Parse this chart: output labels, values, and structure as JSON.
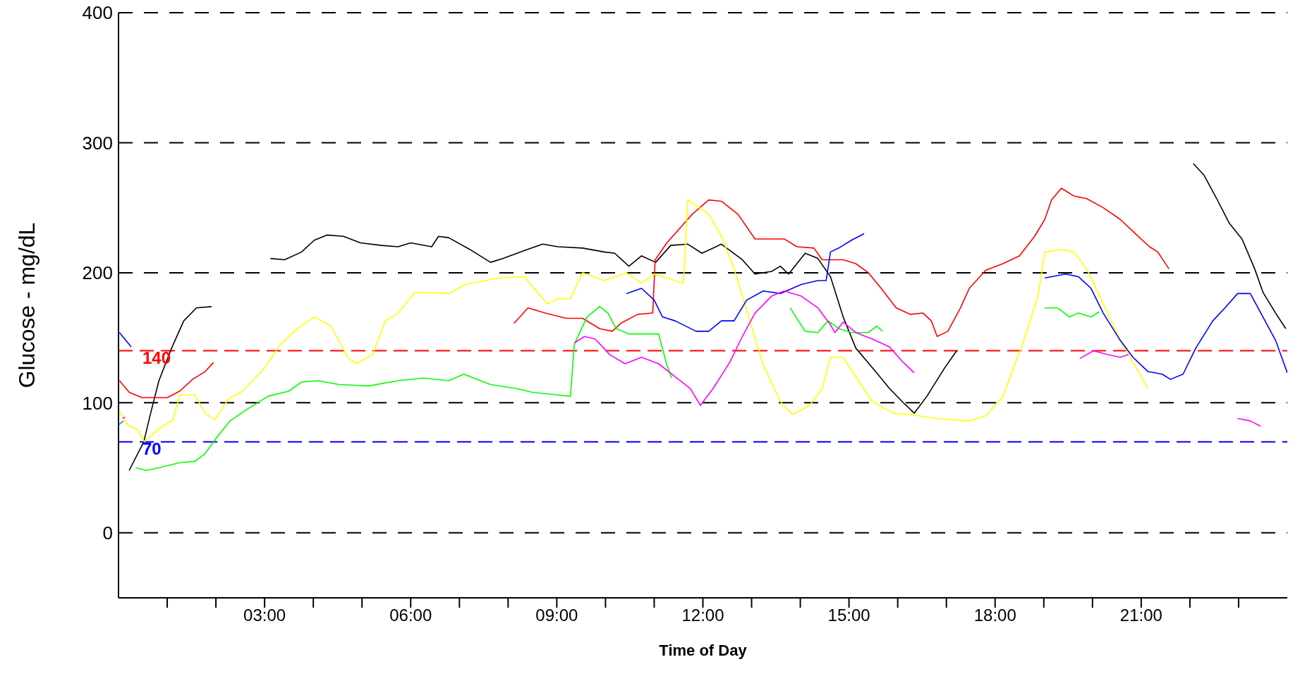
{
  "chart_data": {
    "type": "line",
    "xlabel": "Time of Day",
    "ylabel": "Glucose - mg/dL",
    "xlim": [
      0,
      24
    ],
    "ylim": [
      -50,
      400
    ],
    "xticks": [
      {
        "value": 1,
        "label": null
      },
      {
        "value": 2,
        "label": null
      },
      {
        "value": 3,
        "label": "03:00"
      },
      {
        "value": 4,
        "label": null
      },
      {
        "value": 5,
        "label": null
      },
      {
        "value": 6,
        "label": "06:00"
      },
      {
        "value": 7,
        "label": null
      },
      {
        "value": 8,
        "label": null
      },
      {
        "value": 9,
        "label": "09:00"
      },
      {
        "value": 10,
        "label": null
      },
      {
        "value": 11,
        "label": null
      },
      {
        "value": 12,
        "label": "12:00"
      },
      {
        "value": 13,
        "label": null
      },
      {
        "value": 14,
        "label": null
      },
      {
        "value": 15,
        "label": "15:00"
      },
      {
        "value": 16,
        "label": null
      },
      {
        "value": 17,
        "label": null
      },
      {
        "value": 18,
        "label": "18:00"
      },
      {
        "value": 19,
        "label": null
      },
      {
        "value": 20,
        "label": null
      },
      {
        "value": 21,
        "label": "21:00"
      },
      {
        "value": 22,
        "label": null
      },
      {
        "value": 23,
        "label": null
      }
    ],
    "yticks": [
      0,
      100,
      200,
      300,
      400
    ],
    "grid": "y",
    "marker": "none",
    "line_style": "solid",
    "ref_lines": [
      {
        "axis": "y",
        "value": 140,
        "label": "140",
        "color": "#ff0000",
        "line_style": "dashed"
      },
      {
        "axis": "y",
        "value": 70,
        "label": "70",
        "color": "#0000ff",
        "line_style": "dashed"
      }
    ],
    "series": [
      {
        "color": "#000000",
        "x": [
          0.22,
          0.52,
          0.66,
          0.83,
          1.09,
          1.34,
          1.6,
          1.91,
          null,
          3.12,
          3.41,
          3.76,
          4.02,
          4.28,
          4.62,
          4.97,
          5.4,
          5.74,
          6.0,
          6.43,
          6.57,
          6.78,
          7.21,
          7.64,
          7.9,
          8.33,
          8.71,
          9.02,
          9.53,
          9.97,
          10.19,
          10.48,
          10.74,
          11.03,
          11.34,
          11.69,
          11.98,
          12.38,
          12.81,
          13.07,
          13.41,
          13.59,
          13.76,
          14.1,
          14.36,
          14.62,
          14.88,
          15.14,
          15.57,
          15.83,
          16.09,
          16.34,
          16.6,
          16.95,
          17.21,
          null,
          22.07,
          22.29,
          22.55,
          22.81,
          23.07,
          23.33,
          23.5,
          23.76,
          23.97
        ],
        "values": [
          48,
          70,
          92,
          117,
          142,
          163,
          173,
          174,
          null,
          211,
          210,
          216,
          225,
          229,
          228,
          223,
          221,
          220,
          223,
          220,
          228,
          227,
          218,
          208,
          211,
          217,
          222,
          220,
          219,
          216,
          215,
          205,
          213,
          208,
          221,
          222,
          215,
          222,
          210,
          199,
          201,
          205,
          199,
          215,
          211,
          197,
          166,
          142,
          123,
          111,
          101,
          92,
          105,
          126,
          140,
          null,
          284,
          275,
          257,
          238,
          226,
          203,
          185,
          169,
          157
        ]
      },
      {
        "color": "#ff0000",
        "x": [
          0.02,
          0.22,
          0.48,
          1.0,
          1.26,
          1.52,
          1.78,
          1.95,
          null,
          8.12,
          8.41,
          8.76,
          9.19,
          9.53,
          9.88,
          10.14,
          10.31,
          10.66,
          10.97,
          11.02,
          11.26,
          11.52,
          11.78,
          12.12,
          12.38,
          12.72,
          13.07,
          13.67,
          13.93,
          14.28,
          14.45,
          14.88,
          15.14,
          15.4,
          15.66,
          15.97,
          16.26,
          16.52,
          16.69,
          16.81,
          17.03,
          17.29,
          17.47,
          17.81,
          18.16,
          18.5,
          18.81,
          19.02,
          19.16,
          19.36,
          19.62,
          19.88,
          20.22,
          20.57,
          20.91,
          21.17,
          21.34,
          21.57
        ],
        "values": [
          117,
          108,
          104,
          104,
          109,
          118,
          124,
          131,
          null,
          161,
          173,
          169,
          165,
          165,
          157,
          155,
          161,
          168,
          169,
          210,
          223,
          234,
          245,
          256,
          255,
          245,
          226,
          226,
          220,
          219,
          210,
          210,
          207,
          200,
          188,
          173,
          168,
          169,
          163,
          151,
          155,
          173,
          188,
          202,
          207,
          213,
          228,
          241,
          256,
          265,
          259,
          257,
          250,
          241,
          229,
          220,
          216,
          203
        ]
      },
      {
        "color": "#ffff00",
        "x": [
          0.0,
          0.19,
          0.4,
          0.53,
          0.83,
          1.12,
          1.26,
          1.57,
          1.78,
          1.98,
          2.26,
          2.55,
          2.98,
          3.33,
          3.67,
          4.02,
          4.36,
          4.71,
          4.88,
          5.22,
          5.48,
          5.74,
          6.09,
          6.78,
          7.12,
          7.81,
          8.33,
          8.67,
          8.81,
          9.02,
          9.28,
          9.53,
          9.97,
          10.43,
          10.74,
          11.0,
          11.6,
          11.69,
          12.12,
          12.38,
          12.64,
          12.9,
          13.24,
          13.59,
          13.84,
          14.19,
          14.45,
          14.62,
          14.88,
          15.14,
          15.48,
          15.91,
          16.26,
          16.78,
          17.47,
          17.81,
          18.16,
          18.59,
          18.88,
          19.02,
          19.36,
          19.62,
          19.88,
          20.22,
          20.57,
          20.91,
          21.14
        ],
        "values": [
          95,
          83,
          79,
          70,
          80,
          87,
          106,
          106,
          92,
          87,
          103,
          109,
          126,
          145,
          157,
          166,
          159,
          135,
          130,
          137,
          163,
          169,
          185,
          184,
          191,
          196,
          197,
          182,
          176,
          180,
          180,
          200,
          194,
          200,
          192,
          199,
          192,
          256,
          245,
          228,
          203,
          171,
          129,
          101,
          91,
          98,
          111,
          135,
          135,
          120,
          101,
          92,
          91,
          88,
          86,
          90,
          105,
          148,
          182,
          216,
          218,
          216,
          203,
          176,
          148,
          126,
          111
        ]
      },
      {
        "color": "#00ff00",
        "x": [
          0.36,
          0.57,
          0.83,
          1.26,
          1.57,
          1.78,
          2.03,
          2.29,
          2.64,
          3.07,
          3.5,
          3.76,
          4.1,
          4.53,
          5.14,
          5.74,
          6.26,
          6.78,
          7.09,
          7.64,
          8.16,
          8.5,
          9.02,
          9.28,
          9.36,
          9.62,
          9.88,
          10.05,
          10.22,
          10.48,
          11.09,
          11.26,
          11.36,
          null,
          13.79,
          14.1,
          14.36,
          14.57,
          14.79,
          15.05,
          15.4,
          15.57,
          15.69,
          null,
          19.02,
          19.28,
          19.53,
          19.71,
          19.97,
          20.14
        ],
        "values": [
          50,
          48,
          50,
          54,
          55,
          61,
          74,
          86,
          95,
          105,
          109,
          116,
          117,
          114,
          113,
          117,
          119,
          117,
          122,
          114,
          111,
          108,
          106,
          105,
          145,
          166,
          174,
          169,
          157,
          153,
          153,
          129,
          119,
          null,
          173,
          155,
          154,
          163,
          157,
          154,
          154,
          159,
          155,
          null,
          173,
          173,
          166,
          169,
          166,
          170
        ]
      },
      {
        "color": "#0000ff",
        "x": [
          0.02,
          0.26,
          null,
          10.43,
          10.74,
          11.0,
          11.17,
          11.43,
          11.86,
          12.12,
          12.38,
          12.64,
          12.9,
          13.24,
          13.59,
          14.02,
          14.36,
          14.53,
          14.62,
          14.79,
          15.05,
          15.31,
          null,
          19.02,
          19.45,
          19.71,
          19.97,
          20.22,
          20.57,
          20.83,
          21.14,
          21.43,
          21.6,
          21.86,
          22.12,
          22.47,
          22.72,
          22.98,
          23.24,
          23.5,
          23.76,
          24.0
        ],
        "values": [
          154,
          143,
          null,
          184,
          188,
          179,
          166,
          163,
          155,
          155,
          163,
          163,
          179,
          186,
          184,
          191,
          194,
          194,
          216,
          219,
          225,
          230,
          null,
          196,
          199,
          197,
          188,
          169,
          148,
          135,
          124,
          122,
          118,
          122,
          142,
          163,
          173,
          184,
          184,
          166,
          148,
          123
        ]
      },
      {
        "color": "#ff00ff",
        "x": [
          0.08,
          0.14,
          null,
          9.36,
          9.57,
          9.79,
          10.09,
          10.4,
          10.74,
          11.09,
          11.43,
          11.74,
          11.95,
          12.21,
          12.55,
          12.81,
          13.07,
          13.41,
          13.67,
          14.02,
          14.36,
          14.62,
          14.71,
          14.88,
          15.14,
          15.48,
          15.83,
          16.09,
          16.34,
          null,
          19.74,
          20.02,
          20.31,
          20.57,
          20.74,
          null,
          22.98,
          23.24,
          23.45
        ],
        "values": [
          88,
          89,
          null,
          146,
          151,
          149,
          137,
          130,
          135,
          130,
          120,
          111,
          98,
          111,
          131,
          151,
          169,
          182,
          186,
          182,
          173,
          160,
          154,
          162,
          154,
          149,
          143,
          132,
          123,
          null,
          134,
          140,
          137,
          135,
          137,
          null,
          88,
          86,
          82
        ]
      },
      {
        "color": "#009999",
        "x": [
          0.0,
          0.1
        ],
        "values": [
          83,
          86
        ]
      }
    ]
  }
}
